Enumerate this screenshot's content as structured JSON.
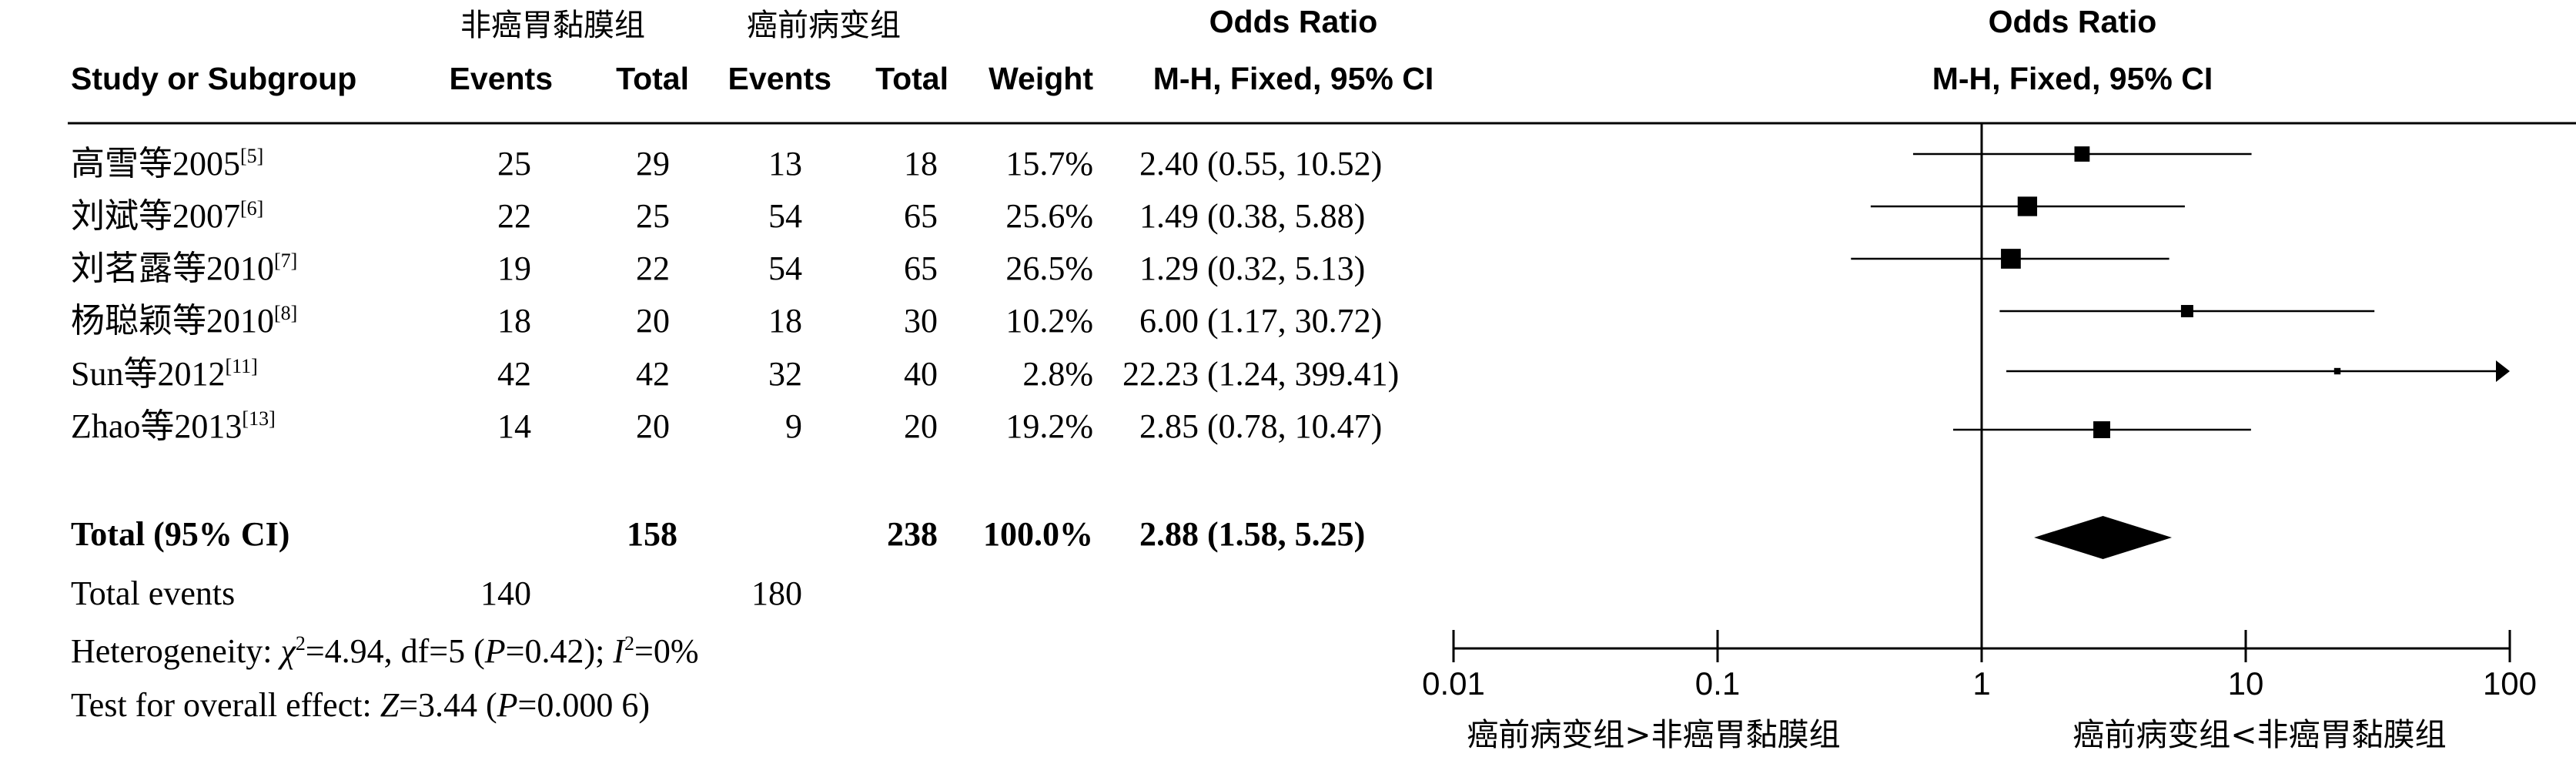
{
  "header": {
    "group1_name": "非癌胃黏膜组",
    "group2_name": "癌前病变组",
    "study_col": "Study or Subgroup",
    "events": "Events",
    "total": "Total",
    "weight": "Weight",
    "or_title": "Odds Ratio",
    "or_method": "M-H, Fixed, 95% CI"
  },
  "studies": [
    {
      "name": "高雪等2005",
      "ref": "[5]",
      "g1_events": "25",
      "g1_total": "29",
      "g2_events": "13",
      "g2_total": "18",
      "weight": "15.7%",
      "or_text": "2.40 (0.55, 10.52)"
    },
    {
      "name": "刘斌等2007",
      "ref": "[6]",
      "g1_events": "22",
      "g1_total": "25",
      "g2_events": "54",
      "g2_total": "65",
      "weight": "25.6%",
      "or_text": "1.49 (0.38, 5.88)"
    },
    {
      "name": "刘茗露等2010",
      "ref": "[7]",
      "g1_events": "19",
      "g1_total": "22",
      "g2_events": "54",
      "g2_total": "65",
      "weight": "26.5%",
      "or_text": "1.29 (0.32, 5.13)"
    },
    {
      "name": "杨聪颖等2010",
      "ref": "[8]",
      "g1_events": "18",
      "g1_total": "20",
      "g2_events": "18",
      "g2_total": "30",
      "weight": "10.2%",
      "or_text": "6.00 (1.17, 30.72)"
    },
    {
      "name": "Sun等2012",
      "ref": "[11]",
      "g1_events": "42",
      "g1_total": "42",
      "g2_events": "32",
      "g2_total": "40",
      "weight": "2.8%",
      "or_text": "22.23 (1.24, 399.41)"
    },
    {
      "name": "Zhao等2013",
      "ref": "[13]",
      "g1_events": "14",
      "g1_total": "20",
      "g2_events": "9",
      "g2_total": "20",
      "weight": "19.2%",
      "or_text": "2.85 (0.78, 10.47)"
    }
  ],
  "total": {
    "label": "Total (95% CI)",
    "g1_total": "158",
    "g2_total": "238",
    "weight": "100.0%",
    "or_text": "2.88 (1.58, 5.25)"
  },
  "total_events": {
    "label": "Total events",
    "g1": "140",
    "g2": "180"
  },
  "heterogeneity": {
    "prefix": "Heterogeneity: ",
    "chi_symbol": "χ",
    "chi_exp": "2",
    "chi_value": "=4.94, df=5 (",
    "p_symbol": "P",
    "p_value": "=0.42); ",
    "i_symbol": "I",
    "i_exp": "2",
    "i_value": "=0%"
  },
  "overall_effect": {
    "prefix": "Test for overall effect: ",
    "z_symbol": "Z",
    "z_value": "=3.44 (",
    "p_symbol": "P",
    "p_value": "=0.000 6)"
  },
  "axis": {
    "favours_left": "癌前病变组>非癌胃黏膜组",
    "favours_right": "癌前病变组<非癌胃黏膜组"
  },
  "chart_data": {
    "type": "forest",
    "scale": "log",
    "xlim": [
      0.01,
      100
    ],
    "ticks": [
      {
        "value": 0.01,
        "label": "0.01"
      },
      {
        "value": 0.1,
        "label": "0.1"
      },
      {
        "value": 1,
        "label": "1"
      },
      {
        "value": 10,
        "label": "10"
      },
      {
        "value": 100,
        "label": "100"
      }
    ],
    "reference_line": 1,
    "studies": [
      {
        "or": 2.4,
        "lower": 0.55,
        "upper": 10.52,
        "weight": 15.7
      },
      {
        "or": 1.49,
        "lower": 0.38,
        "upper": 5.88,
        "weight": 25.6
      },
      {
        "or": 1.29,
        "lower": 0.32,
        "upper": 5.13,
        "weight": 26.5
      },
      {
        "or": 6.0,
        "lower": 1.17,
        "upper": 30.72,
        "weight": 10.2
      },
      {
        "or": 22.23,
        "lower": 1.24,
        "upper": 399.41,
        "weight": 2.8
      },
      {
        "or": 2.85,
        "lower": 0.78,
        "upper": 10.47,
        "weight": 19.2
      }
    ],
    "pooled": {
      "or": 2.88,
      "lower": 1.58,
      "upper": 5.25
    }
  }
}
